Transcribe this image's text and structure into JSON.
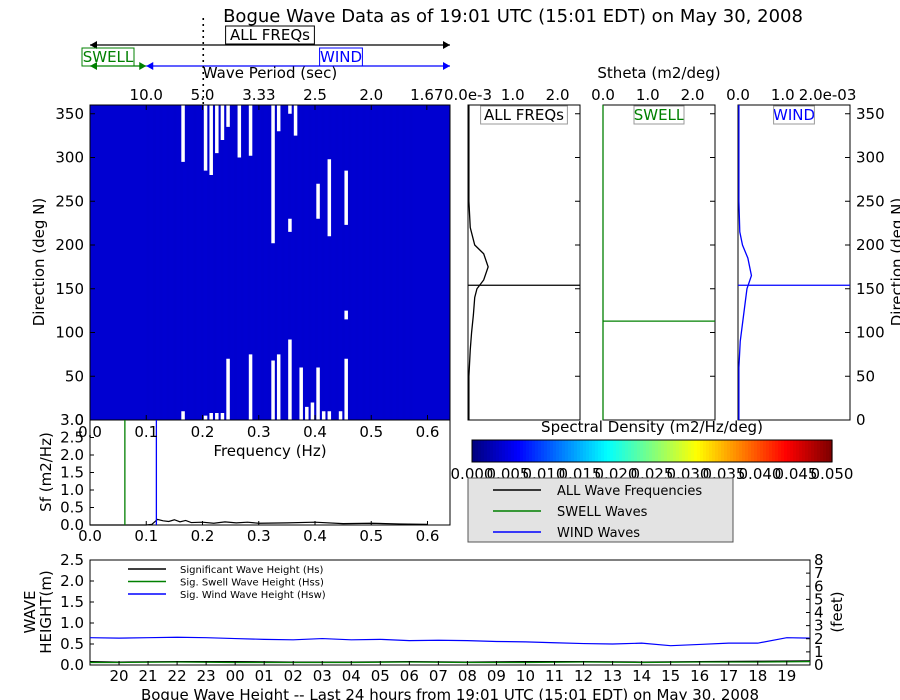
{
  "title": "Bogue Wave Data as of 19:01 UTC (15:01 EDT) on May 30, 2008",
  "colors": {
    "black": "#000000",
    "green": "#008000",
    "blue": "#0000ff",
    "navy": "#00008f"
  },
  "band_labels": {
    "all": "ALL FREQs",
    "swell": "SWELL",
    "wind": "WIND",
    "separation_freq": 0.1
  },
  "chart_data": [
    {
      "type": "heatmap",
      "title": "",
      "xlabel": "Frequency (Hz)",
      "ylabel": "Direction (deg N)",
      "x2label": "Wave Period (sec)",
      "xlim": [
        0.0,
        0.64
      ],
      "ylim": [
        0,
        360
      ],
      "x_ticks": [
        0.0,
        0.1,
        0.2,
        0.3,
        0.4,
        0.5,
        0.6
      ],
      "x_tick_labels": [
        "0.0",
        "0.1",
        "0.2",
        "0.3",
        "0.4",
        "0.5",
        "0.6"
      ],
      "y_ticks": [
        0,
        50,
        100,
        150,
        200,
        250,
        300,
        350
      ],
      "y_tick_labels": [
        "0",
        "50",
        "100",
        "150",
        "200",
        "250",
        "300",
        "350"
      ],
      "period_ticks": [
        10.0,
        5.0,
        3.33,
        2.5,
        2.0,
        1.67
      ],
      "period_tick_labels": [
        "10.0",
        "5.0",
        "3.33",
        "2.5",
        "2.0",
        "1.67"
      ],
      "colorbar_label": "Spectral Density (m2/Hz/deg)",
      "colorbar_ticks": [
        "0.000",
        "0.005",
        "0.010",
        "0.015",
        "0.020",
        "0.025",
        "0.030",
        "0.035",
        "0.040",
        "0.045",
        "0.050"
      ],
      "colorbar_range": [
        0.0,
        0.05
      ],
      "value_background": 0.0,
      "white_gaps": [
        [
          0.165,
          0,
          10
        ],
        [
          0.165,
          295,
          360
        ],
        [
          0.205,
          0,
          5
        ],
        [
          0.205,
          285,
          360
        ],
        [
          0.215,
          0,
          8
        ],
        [
          0.215,
          280,
          360
        ],
        [
          0.225,
          0,
          8
        ],
        [
          0.225,
          305,
          360
        ],
        [
          0.235,
          0,
          8
        ],
        [
          0.235,
          320,
          360
        ],
        [
          0.245,
          0,
          70
        ],
        [
          0.245,
          335,
          360
        ],
        [
          0.265,
          300,
          360
        ],
        [
          0.285,
          0,
          75
        ],
        [
          0.285,
          302,
          360
        ],
        [
          0.325,
          0,
          68
        ],
        [
          0.325,
          202,
          360
        ],
        [
          0.335,
          0,
          75
        ],
        [
          0.335,
          330,
          360
        ],
        [
          0.355,
          0,
          92
        ],
        [
          0.355,
          215,
          230
        ],
        [
          0.355,
          350,
          360
        ],
        [
          0.365,
          325,
          360
        ],
        [
          0.375,
          0,
          60
        ],
        [
          0.385,
          0,
          15
        ],
        [
          0.395,
          0,
          20
        ],
        [
          0.405,
          0,
          60
        ],
        [
          0.405,
          230,
          270
        ],
        [
          0.415,
          0,
          10
        ],
        [
          0.425,
          0,
          10
        ],
        [
          0.425,
          210,
          298
        ],
        [
          0.445,
          0,
          10
        ],
        [
          0.455,
          0,
          70
        ],
        [
          0.455,
          115,
          125
        ],
        [
          0.455,
          223,
          285
        ]
      ]
    },
    {
      "type": "line",
      "title": "",
      "xlabel": "Stheta (m2/deg)",
      "panels": [
        {
          "label": "ALL FREQs",
          "color": "#000000",
          "x_tick_labels": [
            "0.0e-3",
            "1.0",
            "2.0"
          ],
          "xlim": [
            0,
            2.5
          ],
          "x": [
            0.02,
            0.02,
            0.05,
            0.08,
            0.12,
            0.15,
            0.2,
            0.35,
            0.45,
            0.35,
            0.15,
            0.05,
            0.02,
            0.02,
            0.02,
            0.02
          ],
          "y": [
            0,
            50,
            80,
            100,
            120,
            140,
            150,
            160,
            175,
            190,
            200,
            220,
            250,
            300,
            340,
            360
          ],
          "peak_direction": 154
        },
        {
          "label": "SWELL",
          "color": "#008000",
          "x_tick_labels": [
            "0.0",
            "1.0",
            "2.0"
          ],
          "xlim": [
            0,
            2.5
          ],
          "x": [
            0.0,
            0.0
          ],
          "y": [
            0,
            360
          ],
          "peak_direction": 113
        },
        {
          "label": "WIND",
          "color": "#0000ff",
          "x_tick_labels": [
            "0.0",
            "1.0",
            "2.0e-03"
          ],
          "xlim": [
            0,
            2.5
          ],
          "x": [
            0.02,
            0.02,
            0.05,
            0.1,
            0.15,
            0.2,
            0.3,
            0.22,
            0.1,
            0.04,
            0.02,
            0.02
          ],
          "y": [
            0,
            60,
            90,
            110,
            130,
            150,
            165,
            185,
            200,
            215,
            250,
            360
          ],
          "peak_direction": 154
        }
      ]
    },
    {
      "type": "line",
      "title": "",
      "xlabel": "Frequency (Hz)",
      "ylabel": "Sf (m2/Hz)",
      "xlim": [
        0.0,
        0.64
      ],
      "ylim": [
        0.0,
        3.0
      ],
      "y_tick_labels": [
        "0.0",
        "0.5",
        "1.0",
        "1.5",
        "2.0",
        "2.5",
        "3.0"
      ],
      "series": [
        {
          "name": "ALL Wave Frequencies",
          "color": "#000000",
          "x": [
            0.0,
            0.1,
            0.11,
            0.12,
            0.13,
            0.14,
            0.15,
            0.16,
            0.17,
            0.18,
            0.2,
            0.22,
            0.24,
            0.26,
            0.28,
            0.3,
            0.35,
            0.4,
            0.45,
            0.5,
            0.55,
            0.6
          ],
          "y": [
            0.0,
            0.0,
            0.02,
            0.16,
            0.12,
            0.1,
            0.15,
            0.09,
            0.13,
            0.07,
            0.08,
            0.05,
            0.09,
            0.06,
            0.08,
            0.05,
            0.06,
            0.08,
            0.04,
            0.05,
            0.03,
            0.02
          ]
        },
        {
          "name": "SWELL Waves",
          "color": "#008000",
          "vline": 0.062
        },
        {
          "name": "WIND Waves",
          "color": "#0000ff",
          "vline": 0.118
        }
      ]
    },
    {
      "type": "line",
      "title": "",
      "xlabel": "Bogue Wave Height -- Last 24 hours from 19:01 UTC (15:01 EDT) on May 30, 2008",
      "ylabel": "WAVE HEIGHT(m)",
      "y2label": "(feet)",
      "ylim": [
        0.0,
        2.5
      ],
      "y_tick_labels": [
        "0.0",
        "0.5",
        "1.0",
        "1.5",
        "2.0",
        "2.5"
      ],
      "y2_tick_labels": [
        "0",
        "1",
        "2",
        "3",
        "4",
        "5",
        "6",
        "7",
        "8"
      ],
      "x_tick_labels": [
        "20",
        "21",
        "22",
        "23",
        "00",
        "01",
        "02",
        "03",
        "04",
        "05",
        "06",
        "07",
        "08",
        "09",
        "10",
        "11",
        "12",
        "13",
        "14",
        "15",
        "16",
        "17",
        "18",
        "19"
      ],
      "xlim": [
        0,
        24.8
      ],
      "series": [
        {
          "name": "Significant Wave Height (Hs)",
          "color": "#000000",
          "x": [
            0,
            1,
            3,
            5,
            7,
            9,
            11,
            13,
            15,
            17,
            19,
            21,
            23,
            24.8
          ],
          "y": [
            0.08,
            0.07,
            0.08,
            0.08,
            0.07,
            0.07,
            0.08,
            0.07,
            0.08,
            0.08,
            0.07,
            0.08,
            0.09,
            0.1
          ]
        },
        {
          "name": "Sig. Swell Wave Height (Hss)",
          "color": "#008000",
          "x": [
            0,
            1,
            3,
            5,
            7,
            9,
            11,
            13,
            15,
            17,
            19,
            21,
            23,
            24.8
          ],
          "y": [
            0.06,
            0.06,
            0.07,
            0.06,
            0.06,
            0.06,
            0.07,
            0.06,
            0.06,
            0.07,
            0.06,
            0.07,
            0.07,
            0.08
          ]
        },
        {
          "name": "Sig. Wind Wave Height (Hsw)",
          "color": "#0000ff",
          "x": [
            0,
            1,
            2,
            3,
            4,
            5,
            6,
            7,
            8,
            9,
            10,
            11,
            12,
            13,
            14,
            15,
            16,
            17,
            18,
            19,
            20,
            21,
            22,
            23,
            24,
            24.8
          ],
          "y": [
            0.65,
            0.64,
            0.65,
            0.66,
            0.65,
            0.63,
            0.61,
            0.6,
            0.63,
            0.6,
            0.61,
            0.58,
            0.59,
            0.58,
            0.56,
            0.55,
            0.53,
            0.51,
            0.5,
            0.52,
            0.46,
            0.49,
            0.52,
            0.52,
            0.65,
            0.64
          ]
        }
      ]
    }
  ]
}
